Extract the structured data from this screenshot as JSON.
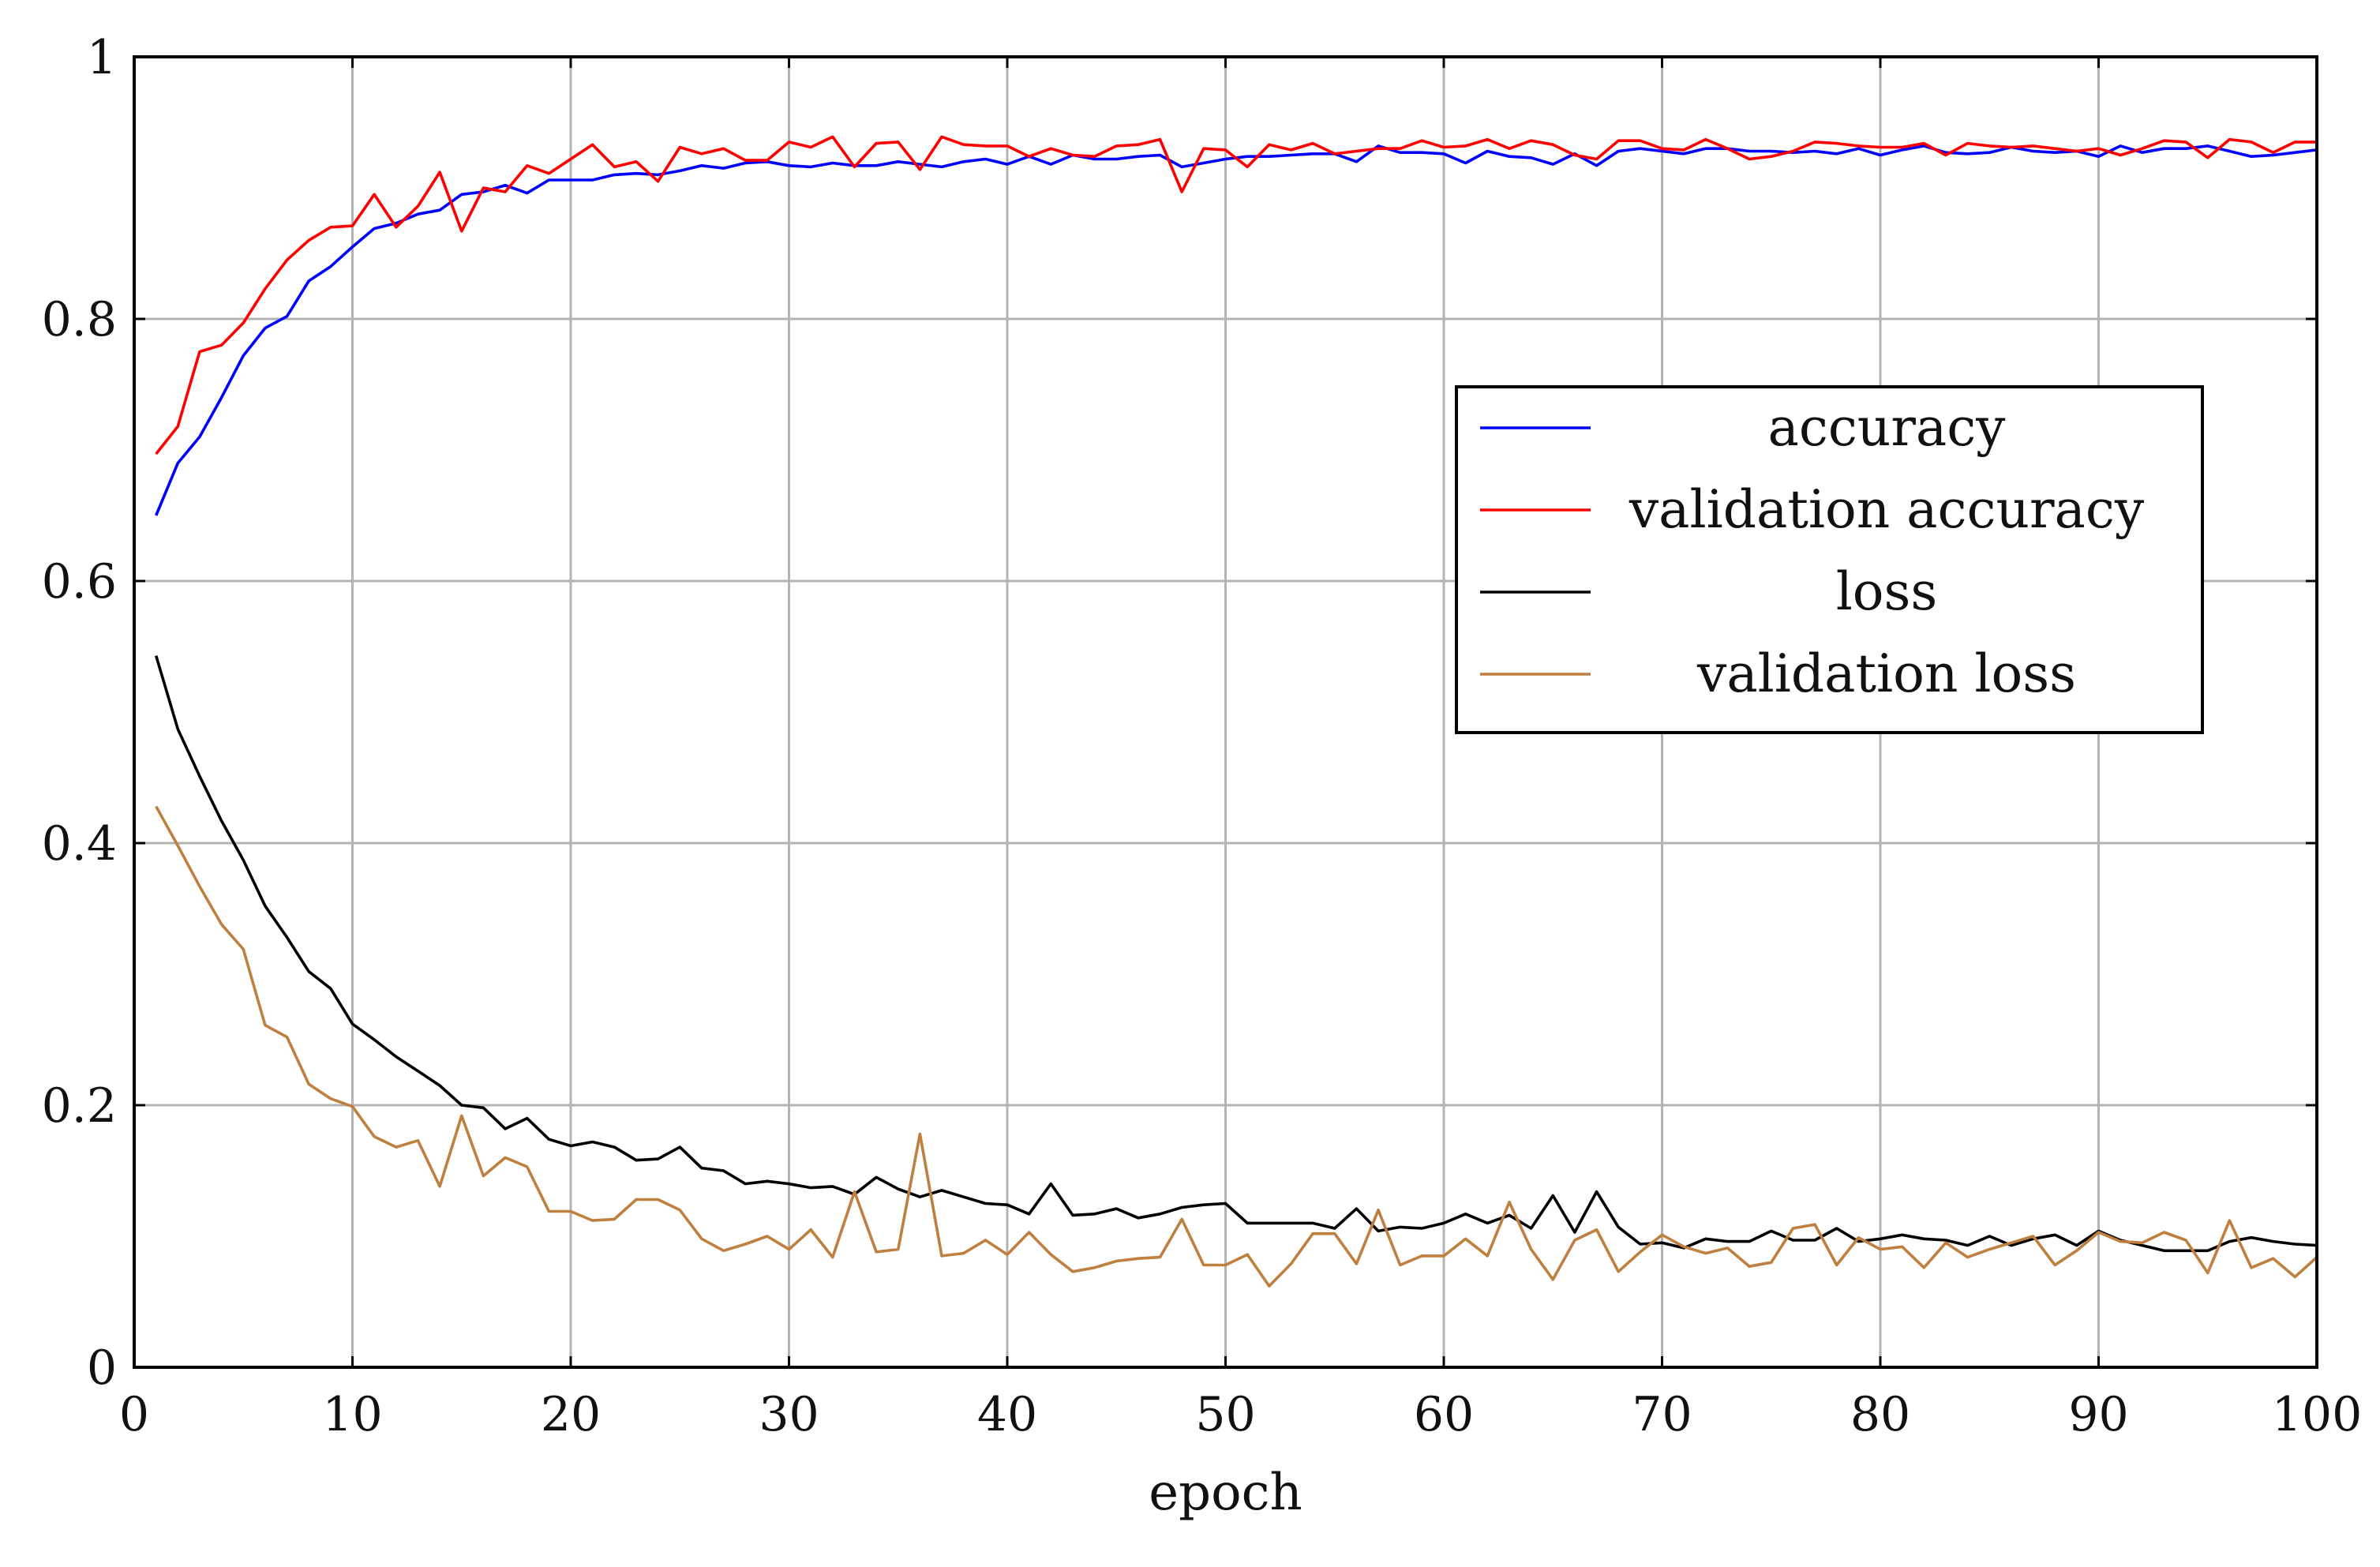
{
  "chart_data": {
    "type": "line",
    "title": "",
    "xlabel": "epoch",
    "ylabel": "",
    "xlim": [
      0,
      100
    ],
    "ylim": [
      0,
      1
    ],
    "xticks": [
      0,
      10,
      20,
      30,
      40,
      50,
      60,
      70,
      80,
      90,
      100
    ],
    "yticks": [
      0,
      0.2,
      0.4,
      0.6,
      0.8,
      1
    ],
    "ytick_labels": [
      "0",
      "0.2",
      "0.4",
      "0.6",
      "0.8",
      "1"
    ],
    "grid": true,
    "legend_position": "right",
    "x": [
      1,
      2,
      3,
      4,
      5,
      6,
      7,
      8,
      9,
      10,
      11,
      12,
      13,
      14,
      15,
      16,
      17,
      18,
      19,
      20,
      21,
      22,
      23,
      24,
      25,
      26,
      27,
      28,
      29,
      30,
      31,
      32,
      33,
      34,
      35,
      36,
      37,
      38,
      39,
      40,
      41,
      42,
      43,
      44,
      45,
      46,
      47,
      48,
      49,
      50,
      51,
      52,
      53,
      54,
      55,
      56,
      57,
      58,
      59,
      60,
      61,
      62,
      63,
      64,
      65,
      66,
      67,
      68,
      69,
      70,
      71,
      72,
      73,
      74,
      75,
      76,
      77,
      78,
      79,
      80,
      81,
      82,
      83,
      84,
      85,
      86,
      87,
      88,
      89,
      90,
      91,
      92,
      93,
      94,
      95,
      96,
      97,
      98,
      99,
      100
    ],
    "series": [
      {
        "name": "accuracy",
        "color": "#0000ff",
        "values": [
          0.65,
          0.69,
          0.71,
          0.74,
          0.772,
          0.793,
          0.802,
          0.829,
          0.84,
          0.855,
          0.869,
          0.873,
          0.88,
          0.883,
          0.895,
          0.897,
          0.902,
          0.896,
          0.906,
          0.906,
          0.906,
          0.91,
          0.911,
          0.91,
          0.913,
          0.917,
          0.915,
          0.919,
          0.92,
          0.917,
          0.916,
          0.919,
          0.917,
          0.917,
          0.92,
          0.918,
          0.916,
          0.92,
          0.922,
          0.918,
          0.924,
          0.918,
          0.925,
          0.922,
          0.922,
          0.924,
          0.925,
          0.916,
          0.919,
          0.922,
          0.924,
          0.924,
          0.925,
          0.926,
          0.926,
          0.92,
          0.932,
          0.927,
          0.927,
          0.926,
          0.919,
          0.928,
          0.924,
          0.923,
          0.918,
          0.926,
          0.917,
          0.928,
          0.93,
          0.928,
          0.926,
          0.93,
          0.93,
          0.928,
          0.928,
          0.927,
          0.928,
          0.926,
          0.93,
          0.925,
          0.929,
          0.932,
          0.927,
          0.926,
          0.927,
          0.931,
          0.928,
          0.927,
          0.928,
          0.924,
          0.932,
          0.927,
          0.93,
          0.93,
          0.932,
          0.928,
          0.924,
          0.925,
          0.927,
          0.929
        ]
      },
      {
        "name": "validation accuracy",
        "color": "#ff0000",
        "values": [
          0.697,
          0.718,
          0.775,
          0.78,
          0.797,
          0.823,
          0.845,
          0.86,
          0.87,
          0.871,
          0.895,
          0.87,
          0.886,
          0.912,
          0.867,
          0.9,
          0.897,
          0.917,
          0.911,
          0.922,
          0.933,
          0.916,
          0.92,
          0.905,
          0.931,
          0.926,
          0.93,
          0.921,
          0.921,
          0.935,
          0.931,
          0.939,
          0.916,
          0.934,
          0.935,
          0.914,
          0.939,
          0.933,
          0.932,
          0.932,
          0.924,
          0.93,
          0.925,
          0.924,
          0.932,
          0.933,
          0.937,
          0.897,
          0.93,
          0.929,
          0.916,
          0.933,
          0.929,
          0.934,
          0.926,
          0.928,
          0.93,
          0.93,
          0.936,
          0.931,
          0.932,
          0.937,
          0.93,
          0.936,
          0.933,
          0.925,
          0.922,
          0.936,
          0.936,
          0.93,
          0.929,
          0.937,
          0.93,
          0.922,
          0.924,
          0.928,
          0.935,
          0.934,
          0.932,
          0.931,
          0.931,
          0.934,
          0.925,
          0.934,
          0.932,
          0.931,
          0.932,
          0.93,
          0.928,
          0.93,
          0.925,
          0.93,
          0.936,
          0.935,
          0.923,
          0.937,
          0.935,
          0.927,
          0.935,
          0.935
        ]
      },
      {
        "name": "loss",
        "color": "#000000",
        "values": [
          0.543,
          0.487,
          0.451,
          0.417,
          0.387,
          0.352,
          0.328,
          0.302,
          0.289,
          0.262,
          0.25,
          0.237,
          0.226,
          0.215,
          0.2,
          0.198,
          0.182,
          0.19,
          0.174,
          0.169,
          0.172,
          0.168,
          0.158,
          0.159,
          0.168,
          0.152,
          0.15,
          0.14,
          0.142,
          0.14,
          0.137,
          0.138,
          0.132,
          0.145,
          0.136,
          0.13,
          0.135,
          0.13,
          0.125,
          0.124,
          0.117,
          0.14,
          0.116,
          0.117,
          0.121,
          0.114,
          0.117,
          0.122,
          0.124,
          0.125,
          0.11,
          0.11,
          0.11,
          0.11,
          0.106,
          0.121,
          0.104,
          0.107,
          0.106,
          0.11,
          0.117,
          0.11,
          0.116,
          0.106,
          0.131,
          0.103,
          0.134,
          0.107,
          0.094,
          0.095,
          0.091,
          0.098,
          0.096,
          0.096,
          0.104,
          0.097,
          0.097,
          0.106,
          0.096,
          0.098,
          0.101,
          0.098,
          0.097,
          0.093,
          0.1,
          0.093,
          0.098,
          0.101,
          0.093,
          0.104,
          0.097,
          0.093,
          0.089,
          0.089,
          0.089,
          0.096,
          0.099,
          0.096,
          0.094,
          0.093
        ]
      },
      {
        "name": "validation loss",
        "color": "#bf7f3f",
        "values": [
          0.428,
          0.398,
          0.367,
          0.338,
          0.319,
          0.261,
          0.252,
          0.216,
          0.205,
          0.199,
          0.176,
          0.168,
          0.173,
          0.138,
          0.192,
          0.146,
          0.16,
          0.153,
          0.119,
          0.119,
          0.112,
          0.113,
          0.128,
          0.128,
          0.12,
          0.098,
          0.089,
          0.094,
          0.1,
          0.09,
          0.105,
          0.084,
          0.134,
          0.088,
          0.09,
          0.178,
          0.085,
          0.087,
          0.097,
          0.086,
          0.103,
          0.086,
          0.073,
          0.076,
          0.081,
          0.083,
          0.084,
          0.113,
          0.078,
          0.078,
          0.086,
          0.062,
          0.079,
          0.102,
          0.102,
          0.079,
          0.12,
          0.078,
          0.085,
          0.085,
          0.098,
          0.085,
          0.126,
          0.09,
          0.067,
          0.097,
          0.105,
          0.073,
          0.088,
          0.101,
          0.092,
          0.087,
          0.091,
          0.077,
          0.08,
          0.106,
          0.109,
          0.078,
          0.099,
          0.09,
          0.092,
          0.076,
          0.095,
          0.084,
          0.09,
          0.095,
          0.1,
          0.078,
          0.089,
          0.103,
          0.096,
          0.095,
          0.103,
          0.097,
          0.072,
          0.112,
          0.076,
          0.083,
          0.069,
          0.084
        ]
      }
    ]
  }
}
